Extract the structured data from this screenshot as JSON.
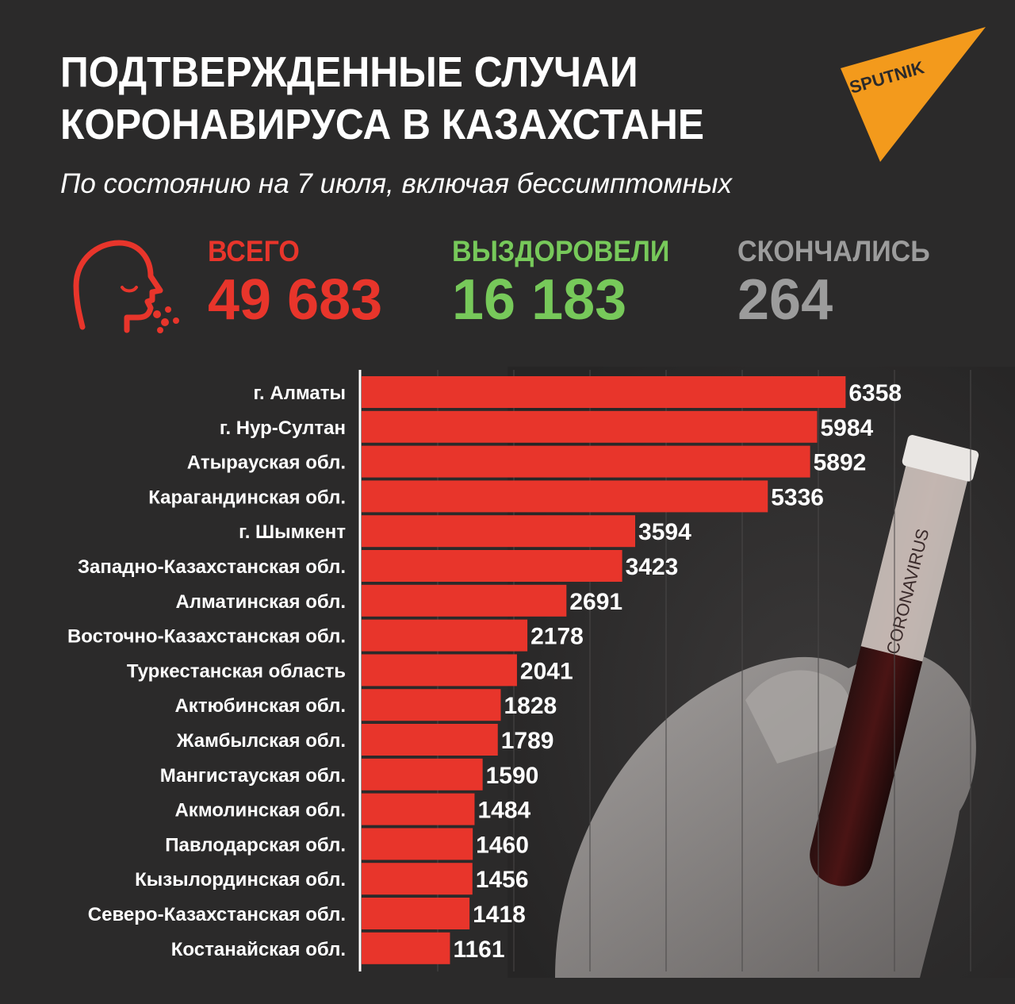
{
  "header": {
    "title_line1": "ПОДТВЕРЖДЕННЫЕ СЛУЧАИ",
    "title_line2": "КОРОНАВИРУСА В КАЗАХСТАНЕ",
    "subtitle": "По состоянию на 7 июля, включая бессимптомных",
    "logo_text": "SPUTNIK"
  },
  "stats": {
    "total_label": "ВСЕГО",
    "total_value": "49 683",
    "recovered_label": "ВЫЗДОРОВЕЛИ",
    "recovered_value": "16 183",
    "deaths_label": "СКОНЧАЛИСЬ",
    "deaths_value": "264"
  },
  "photo_label": "CORONAVIRUS",
  "colors": {
    "background": "#2b2a2a",
    "bar": "#e8352b",
    "total": "#e8352b",
    "recovered": "#77c95a",
    "deaths": "#9c9c9c",
    "logo": "#f39a1c"
  },
  "chart_data": {
    "type": "bar",
    "orientation": "horizontal",
    "categories": [
      "г. Алматы",
      "г. Нур-Султан",
      "Атырауская обл.",
      "Карагандинская обл.",
      "г. Шымкент",
      "Западно-Казахстанская обл.",
      "Алматинская обл.",
      "Восточно-Казахстанская обл.",
      "Туркестанская область",
      "Актюбинская обл.",
      "Жамбылская обл.",
      "Мангистауская обл.",
      "Акмолинская обл.",
      "Павлодарская обл.",
      "Кызылординская обл.",
      "Северо-Казахстанская обл.",
      "Костанайская обл."
    ],
    "values": [
      6358,
      5984,
      5892,
      5336,
      3594,
      3423,
      2691,
      2178,
      2041,
      1828,
      1789,
      1590,
      1484,
      1460,
      1456,
      1418,
      1161
    ],
    "xlim": [
      0,
      8000
    ],
    "grid": true
  }
}
